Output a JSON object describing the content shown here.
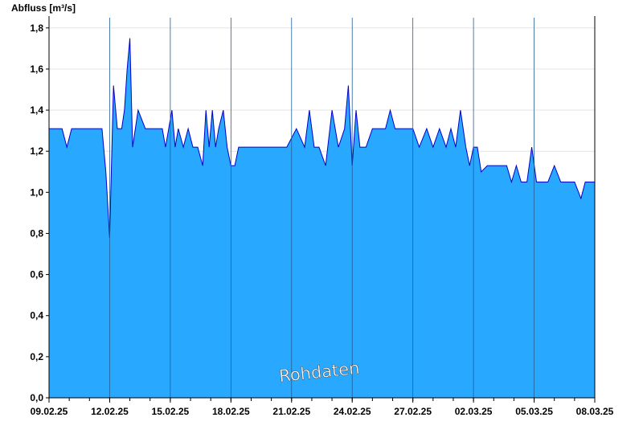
{
  "chart_data": {
    "type": "area",
    "title": "",
    "ylabel": "Abfluss [m³/s]",
    "xlabel": "",
    "watermark": "Rohdaten",
    "ylim": [
      0,
      1.85
    ],
    "xlim": [
      "09.02.25",
      "08.03.25"
    ],
    "grid": true,
    "legend": "none",
    "colors": {
      "fill": "#29a8ff",
      "line": "#0000cc",
      "grid": "#e4e4e4",
      "axis": "#000000",
      "dayline": "#1f5f99"
    },
    "yticks": [
      {
        "value": 0.0,
        "label": "0,0"
      },
      {
        "value": 0.2,
        "label": "0,2"
      },
      {
        "value": 0.4,
        "label": "0,4"
      },
      {
        "value": 0.6,
        "label": "0,6"
      },
      {
        "value": 0.8,
        "label": "0,8"
      },
      {
        "value": 1.0,
        "label": "1,0"
      },
      {
        "value": 1.2,
        "label": "1,2"
      },
      {
        "value": 1.4,
        "label": "1,4"
      },
      {
        "value": 1.6,
        "label": "1,6"
      },
      {
        "value": 1.8,
        "label": "1,8"
      }
    ],
    "xticks": [
      "09.02.25",
      "12.02.25",
      "15.02.25",
      "18.02.25",
      "21.02.25",
      "24.02.25",
      "27.02.25",
      "02.03.25",
      "05.03.25",
      "08.03.25"
    ],
    "series": [
      {
        "x": [
          "09.02.25",
          "10.02.25",
          "10.02.25",
          "10.02.25",
          "10.02.25",
          "11.02.25",
          "12.02.25",
          "12.02.25",
          "12.02.25",
          "12.02.25",
          "12.02.25",
          "13.02.25",
          "13.02.25",
          "13.02.25",
          "13.02.25",
          "13.02.25",
          "13.02.25",
          "13.02.25",
          "14.02.25",
          "14.02.25",
          "15.02.25",
          "15.02.25",
          "15.02.25",
          "15.02.25",
          "15.02.25",
          "15.02.25",
          "16.02.25",
          "16.02.25",
          "16.02.25",
          "16.02.25",
          "17.02.25",
          "17.02.25",
          "17.02.25",
          "17.02.25",
          "17.02.25",
          "17.02.25",
          "18.02.25",
          "18.02.25",
          "18.02.25",
          "18.02.25",
          "18.02.25",
          "19.02.25",
          "19.02.25",
          "19.02.25",
          "20.02.25",
          "20.02.25",
          "21.02.25",
          "21.02.25",
          "22.02.25",
          "22.02.25",
          "22.02.25",
          "22.02.25",
          "23.02.25",
          "23.02.25",
          "23.02.25",
          "24.02.25",
          "24.02.25",
          "24.02.25",
          "24.02.25",
          "24.02.25",
          "25.02.25",
          "25.02.25",
          "25.02.25",
          "26.02.25",
          "26.02.25",
          "26.02.25",
          "26.02.25",
          "27.02.25",
          "27.02.25",
          "27.02.25",
          "28.02.25",
          "28.02.25",
          "28.02.25",
          "01.03.25",
          "01.03.25",
          "01.03.25",
          "01.03.25",
          "02.03.25",
          "02.03.25",
          "02.03.25",
          "02.03.25",
          "02.03.25",
          "03.03.25",
          "03.03.25",
          "03.03.25",
          "04.03.25",
          "04.03.25",
          "04.03.25",
          "04.03.25",
          "05.03.25",
          "05.03.25",
          "05.03.25",
          "05.03.25",
          "06.03.25",
          "06.03.25",
          "06.03.25",
          "07.03.25",
          "07.03.25",
          "07.03.25",
          "08.03.25"
        ],
        "y": [
          1.31,
          1.31,
          1.22,
          1.31,
          1.31,
          1.31,
          1.31,
          1.1,
          0.78,
          1.52,
          1.31,
          1.31,
          1.4,
          1.6,
          1.75,
          1.22,
          1.31,
          1.4,
          1.31,
          1.31,
          1.31,
          1.22,
          1.31,
          1.4,
          1.22,
          1.31,
          1.22,
          1.31,
          1.22,
          1.22,
          1.13,
          1.4,
          1.22,
          1.4,
          1.22,
          1.31,
          1.4,
          1.22,
          1.13,
          1.13,
          1.22,
          1.22,
          1.22,
          1.22,
          1.22,
          1.22,
          1.22,
          1.31,
          1.22,
          1.4,
          1.22,
          1.22,
          1.13,
          1.4,
          1.22,
          1.31,
          1.52,
          1.13,
          1.4,
          1.22,
          1.22,
          1.31,
          1.31,
          1.31,
          1.4,
          1.31,
          1.31,
          1.31,
          1.31,
          1.22,
          1.31,
          1.22,
          1.31,
          1.22,
          1.31,
          1.22,
          1.4,
          1.22,
          1.13,
          1.22,
          1.22,
          1.1,
          1.13,
          1.13,
          1.13,
          1.13,
          1.05,
          1.13,
          1.05,
          1.05,
          1.22,
          1.05,
          1.05,
          1.05,
          1.13,
          1.05,
          1.05,
          1.05,
          0.97,
          1.05
        ]
      }
    ]
  }
}
